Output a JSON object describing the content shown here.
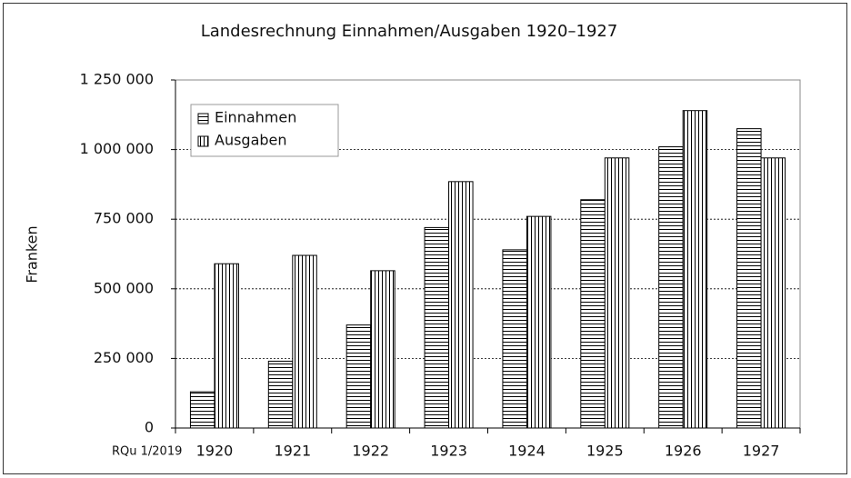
{
  "chart_data": {
    "type": "bar",
    "title": "Landesrechnung Einnahmen/Ausgaben 1920–1927",
    "y_label": "Franken",
    "source": "RQu 1/2019",
    "categories": [
      "1920",
      "1921",
      "1922",
      "1923",
      "1924",
      "1925",
      "1926",
      "1927"
    ],
    "series": [
      {
        "name": "Einnahmen",
        "color": "#000000",
        "pattern": "horizontal",
        "values": [
          130000,
          240000,
          370000,
          720000,
          640000,
          820000,
          1010000,
          1075000
        ]
      },
      {
        "name": "Ausgaben",
        "color": "#000000",
        "pattern": "vertical",
        "values": [
          590000,
          620000,
          565000,
          885000,
          760000,
          970000,
          1140000,
          970000
        ]
      }
    ],
    "ylim": [
      0,
      1250000
    ],
    "yticks": [
      0,
      {
        "value": 250000,
        "label": "250 000"
      },
      {
        "value": 500000,
        "label": "500 000"
      },
      {
        "value": 750000,
        "label": "750 000"
      },
      {
        "value": 1000000,
        "label": "1 000 000"
      },
      {
        "value": 1250000,
        "label": "1 250 000"
      }
    ],
    "grid": true,
    "legend": "upper left"
  }
}
